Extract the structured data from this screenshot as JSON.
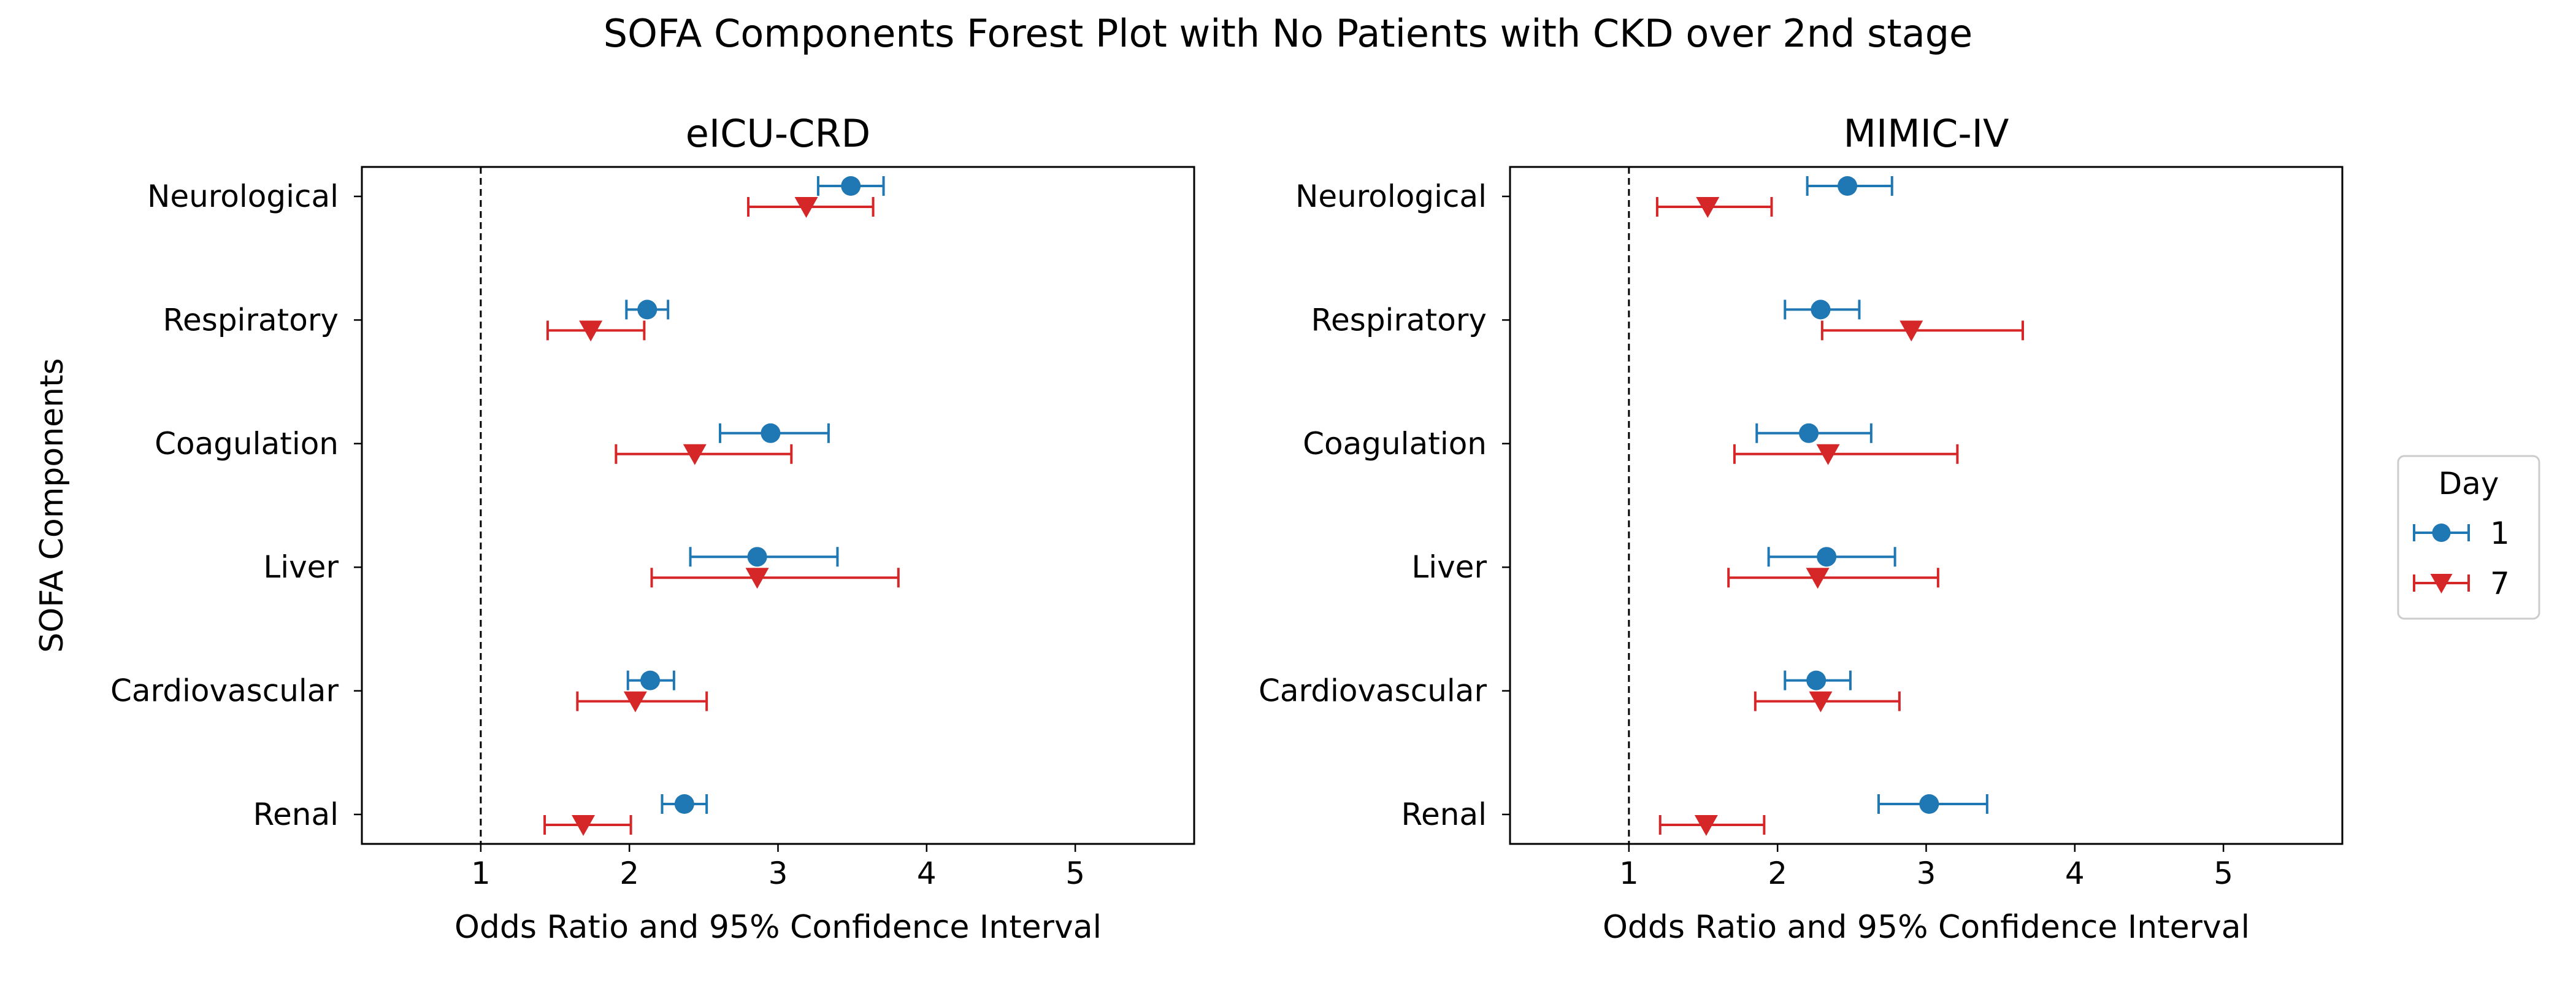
{
  "figure": {
    "suptitle": "SOFA Components Forest Plot with No Patients with CKD over 2nd stage"
  },
  "legend": {
    "title": "Day",
    "entries": [
      {
        "label": "1",
        "color": "#1f77b4",
        "marker": "circle"
      },
      {
        "label": "7",
        "color": "#d62728",
        "marker": "triangle-down"
      }
    ],
    "placement": "right of figure, centered vertically"
  },
  "chart_data": [
    {
      "type": "scatter",
      "subtype": "forest-plot",
      "title": "eICU-CRD",
      "xlabel": "Odds Ratio and 95% Confidence Interval",
      "ylabel": "SOFA Components",
      "xlim": [
        0.2,
        5.8
      ],
      "xticks": [
        1,
        2,
        3,
        4,
        5
      ],
      "reference_line": 1,
      "grid": false,
      "categories": [
        "Neurological",
        "Respiratory",
        "Coagulation",
        "Liver",
        "Cardiovascular",
        "Renal"
      ],
      "series": [
        {
          "name": "1",
          "color": "#1f77b4",
          "marker": "circle",
          "points": [
            {
              "category": "Neurological",
              "or": 3.49,
              "lower": 3.27,
              "upper": 3.71
            },
            {
              "category": "Respiratory",
              "or": 2.12,
              "lower": 1.98,
              "upper": 2.26
            },
            {
              "category": "Coagulation",
              "or": 2.95,
              "lower": 2.61,
              "upper": 3.34
            },
            {
              "category": "Liver",
              "or": 2.86,
              "lower": 2.41,
              "upper": 3.4
            },
            {
              "category": "Cardiovascular",
              "or": 2.14,
              "lower": 1.99,
              "upper": 2.3
            },
            {
              "category": "Renal",
              "or": 2.37,
              "lower": 2.22,
              "upper": 2.52
            }
          ]
        },
        {
          "name": "7",
          "color": "#d62728",
          "marker": "triangle-down",
          "points": [
            {
              "category": "Neurological",
              "or": 3.19,
              "lower": 2.8,
              "upper": 3.64
            },
            {
              "category": "Respiratory",
              "or": 1.74,
              "lower": 1.45,
              "upper": 2.1
            },
            {
              "category": "Coagulation",
              "or": 2.44,
              "lower": 1.91,
              "upper": 3.09
            },
            {
              "category": "Liver",
              "or": 2.86,
              "lower": 2.15,
              "upper": 3.81
            },
            {
              "category": "Cardiovascular",
              "or": 2.04,
              "lower": 1.65,
              "upper": 2.52
            },
            {
              "category": "Renal",
              "or": 1.69,
              "lower": 1.43,
              "upper": 2.01
            }
          ]
        }
      ]
    },
    {
      "type": "scatter",
      "subtype": "forest-plot",
      "title": "MIMIC-IV",
      "xlabel": "Odds Ratio and 95% Confidence Interval",
      "ylabel": "",
      "xlim": [
        0.2,
        5.8
      ],
      "xticks": [
        1,
        2,
        3,
        4,
        5
      ],
      "reference_line": 1,
      "grid": false,
      "categories": [
        "Neurological",
        "Respiratory",
        "Coagulation",
        "Liver",
        "Cardiovascular",
        "Renal"
      ],
      "series": [
        {
          "name": "1",
          "color": "#1f77b4",
          "marker": "circle",
          "points": [
            {
              "category": "Neurological",
              "or": 2.47,
              "lower": 2.2,
              "upper": 2.77
            },
            {
              "category": "Respiratory",
              "or": 2.29,
              "lower": 2.05,
              "upper": 2.55
            },
            {
              "category": "Coagulation",
              "or": 2.21,
              "lower": 1.86,
              "upper": 2.63
            },
            {
              "category": "Liver",
              "or": 2.33,
              "lower": 1.94,
              "upper": 2.79
            },
            {
              "category": "Cardiovascular",
              "or": 2.26,
              "lower": 2.05,
              "upper": 2.49
            },
            {
              "category": "Renal",
              "or": 3.02,
              "lower": 2.68,
              "upper": 3.41
            }
          ]
        },
        {
          "name": "7",
          "color": "#d62728",
          "marker": "triangle-down",
          "points": [
            {
              "category": "Neurological",
              "or": 1.53,
              "lower": 1.19,
              "upper": 1.96
            },
            {
              "category": "Respiratory",
              "or": 2.9,
              "lower": 2.3,
              "upper": 3.65
            },
            {
              "category": "Coagulation",
              "or": 2.34,
              "lower": 1.71,
              "upper": 3.21
            },
            {
              "category": "Liver",
              "or": 2.27,
              "lower": 1.67,
              "upper": 3.08
            },
            {
              "category": "Cardiovascular",
              "or": 2.29,
              "lower": 1.85,
              "upper": 2.82
            },
            {
              "category": "Renal",
              "or": 1.52,
              "lower": 1.21,
              "upper": 1.91
            }
          ]
        }
      ]
    }
  ]
}
